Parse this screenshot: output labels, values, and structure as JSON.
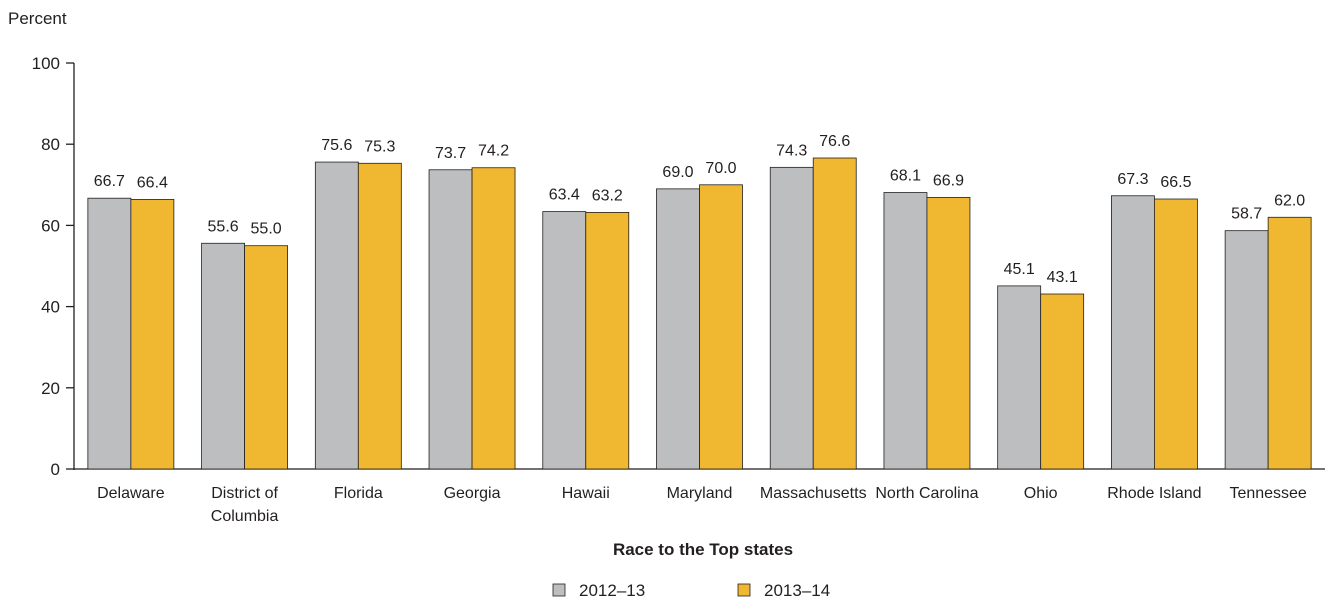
{
  "chart_data": {
    "type": "bar",
    "ylabel": "Percent",
    "xlabel": "Race to the Top states",
    "ylim": [
      0,
      100
    ],
    "yticks": [
      0,
      20,
      40,
      60,
      80,
      100
    ],
    "grid": false,
    "legend_position": "bottom",
    "categories": [
      [
        "Delaware"
      ],
      [
        "District of",
        "Columbia"
      ],
      [
        "Florida"
      ],
      [
        "Georgia"
      ],
      [
        "Hawaii"
      ],
      [
        "Maryland"
      ],
      [
        "Massachusetts"
      ],
      [
        "North Carolina"
      ],
      [
        "Ohio"
      ],
      [
        "Rhode Island"
      ],
      [
        "Tennessee"
      ]
    ],
    "series": [
      {
        "name": "2012–13",
        "color": "#bcbec0",
        "values": [
          66.7,
          55.6,
          75.6,
          73.7,
          63.4,
          69.0,
          74.3,
          68.1,
          45.1,
          67.3,
          58.7
        ],
        "labels": [
          "66.7",
          "55.6",
          "75.6",
          "73.7",
          "63.4",
          "69.0",
          "74.3",
          "68.1",
          "45.1",
          "67.3",
          "58.7"
        ]
      },
      {
        "name": "2013–14",
        "color": "#f0b730",
        "values": [
          66.4,
          55.0,
          75.3,
          74.2,
          63.2,
          70.0,
          76.6,
          66.9,
          43.1,
          66.5,
          62.0
        ],
        "labels": [
          "66.4",
          "55.0",
          "75.3",
          "74.2",
          "63.2",
          "70.0",
          "76.6",
          "66.9",
          "43.1",
          "66.5",
          "62.0"
        ]
      }
    ]
  }
}
